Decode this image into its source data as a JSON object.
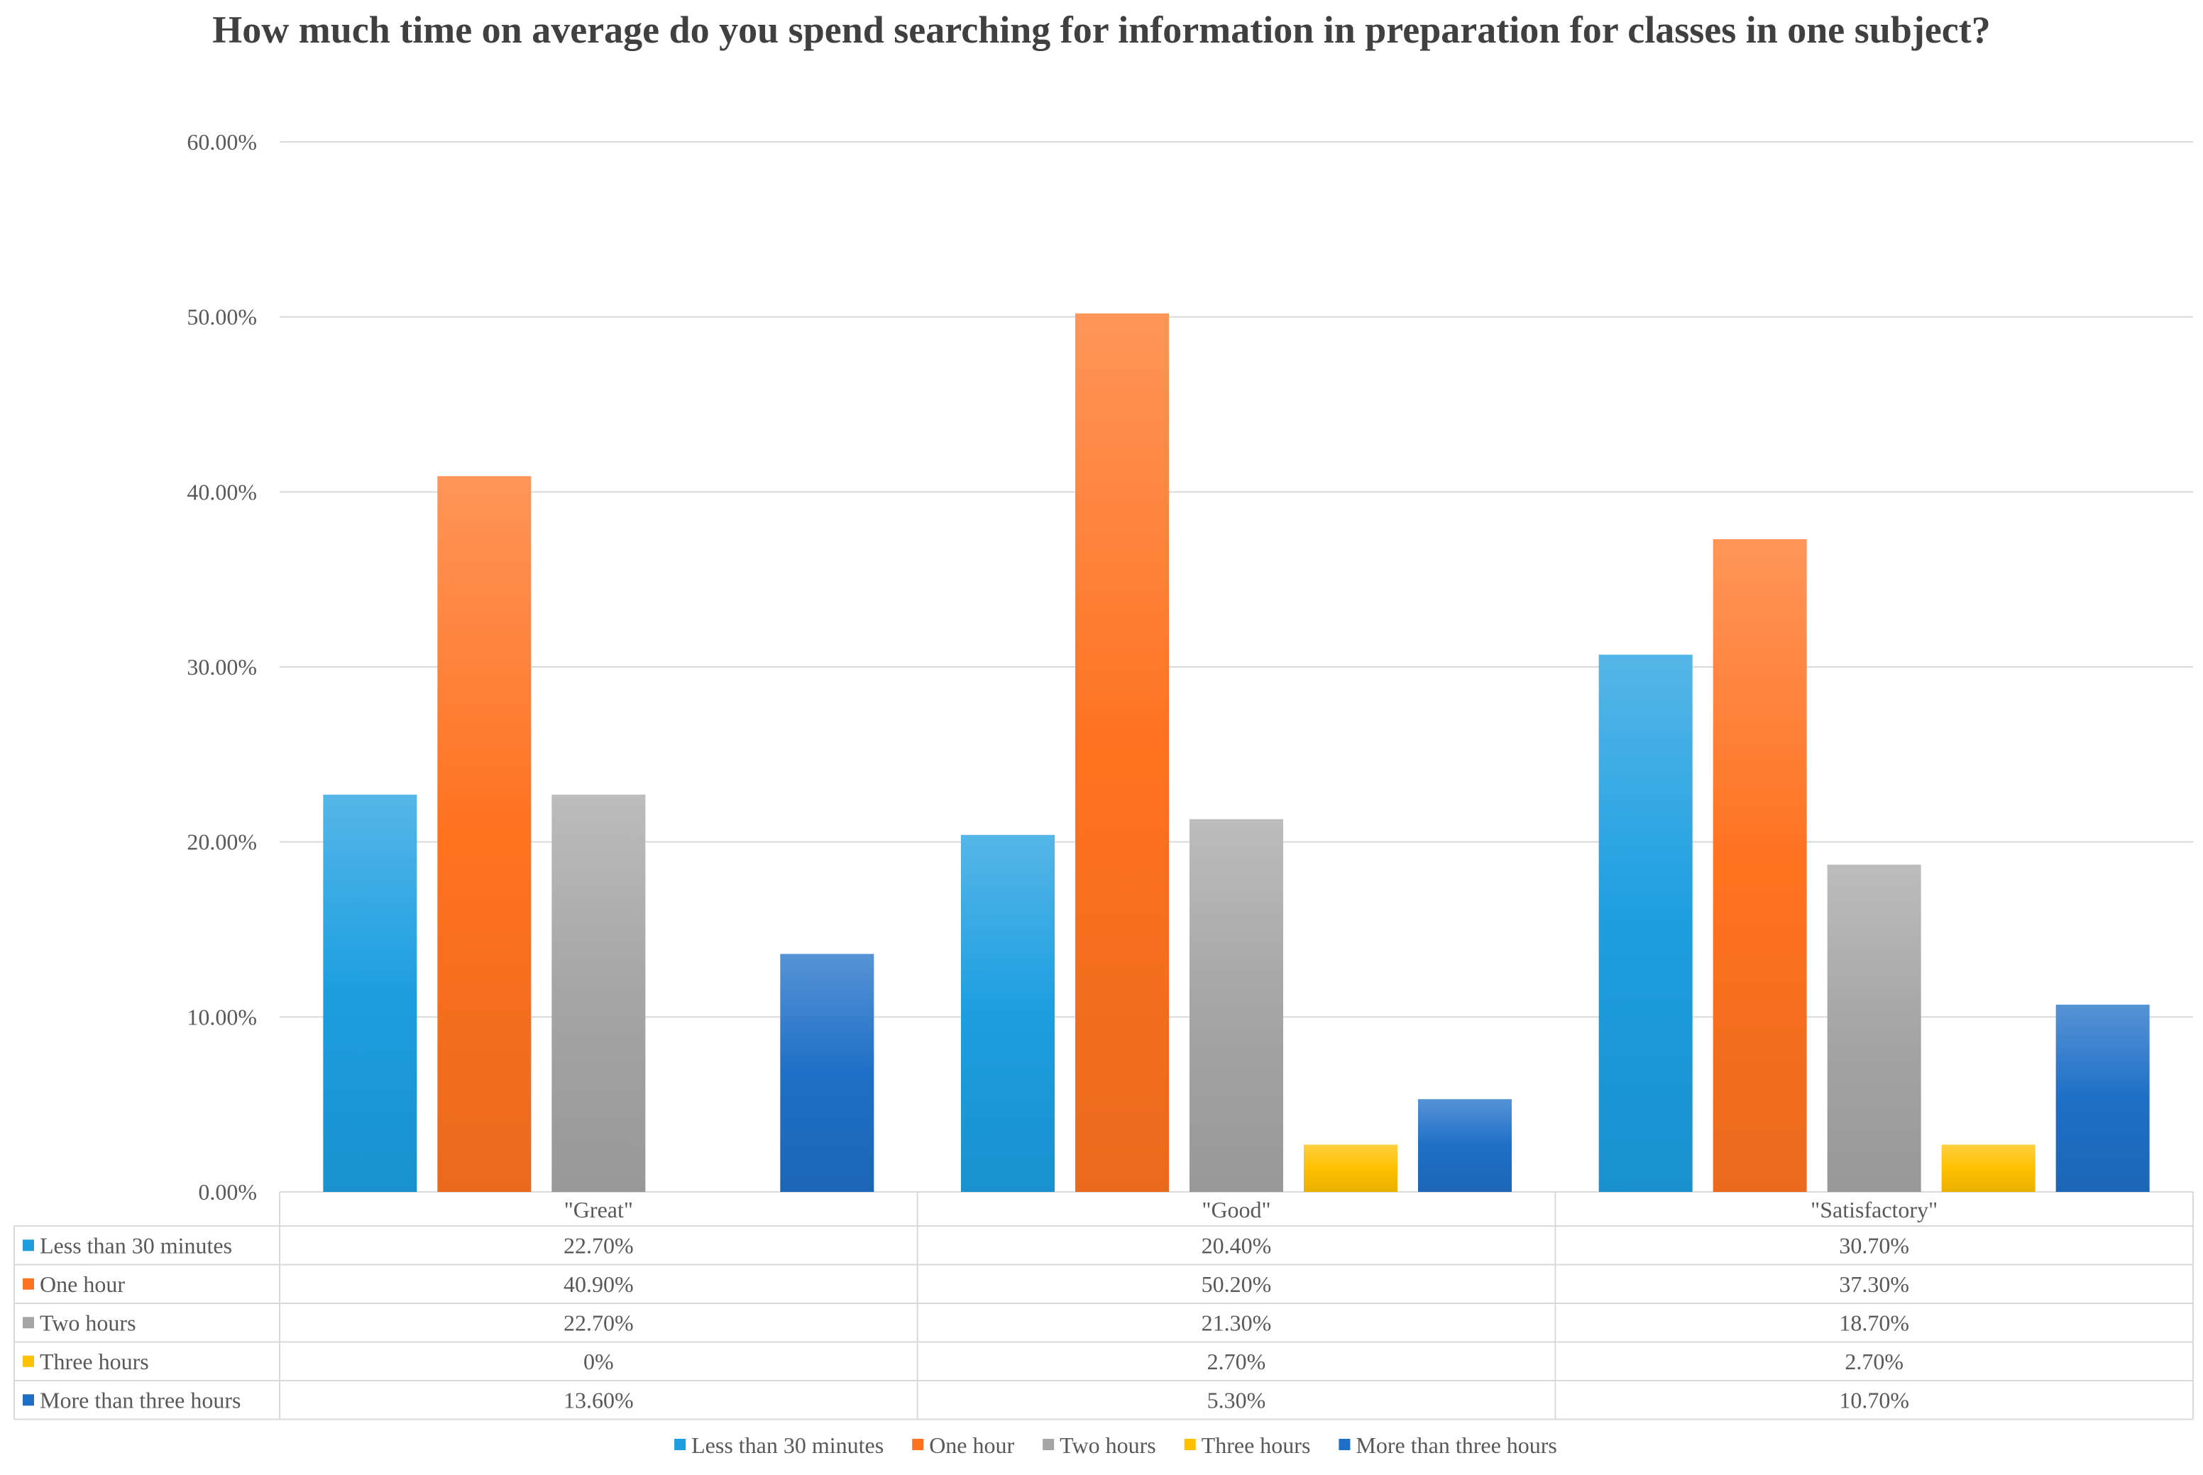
{
  "chart_data": {
    "type": "bar",
    "title": "How much time on average do you spend searching for information in preparation for classes in one subject?",
    "xlabel": "",
    "ylabel": "",
    "ylim": [
      0,
      60
    ],
    "yticks": [
      "0.00%",
      "10.00%",
      "20.00%",
      "30.00%",
      "40.00%",
      "50.00%",
      "60.00%"
    ],
    "grid": true,
    "legend_position": "bottom",
    "categories": [
      "\"Great\"",
      "\"Good\"",
      "\"Satisfactory\""
    ],
    "series": [
      {
        "name": "Less than 30 minutes",
        "color": "#1c9ee0",
        "values": [
          22.7,
          20.4,
          30.7
        ],
        "labels": [
          "22.70%",
          "20.40%",
          "30.70%"
        ]
      },
      {
        "name": "One hour",
        "color": "#ff7220",
        "values": [
          40.9,
          50.2,
          37.3
        ],
        "labels": [
          "40.90%",
          "50.20%",
          "37.30%"
        ]
      },
      {
        "name": "Two hours",
        "color": "#a5a5a5",
        "values": [
          22.7,
          21.3,
          18.7
        ],
        "labels": [
          "22.70%",
          "21.30%",
          "18.70%"
        ]
      },
      {
        "name": "Three hours",
        "color": "#ffc000",
        "values": [
          0,
          2.7,
          2.7
        ],
        "labels": [
          "0%",
          "2.70%",
          "2.70%"
        ]
      },
      {
        "name": "More than three hours",
        "color": "#1e6fc7",
        "values": [
          13.6,
          5.3,
          10.7
        ],
        "labels": [
          "13.60%",
          "5.30%",
          "10.70%"
        ]
      }
    ]
  }
}
